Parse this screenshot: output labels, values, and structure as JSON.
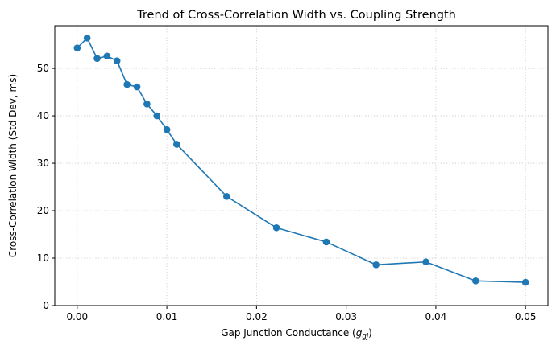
{
  "chart_data": {
    "type": "line",
    "title": "Trend of Cross-Correlation Width vs. Coupling Strength",
    "xlabel_prefix": "Gap Junction Conductance (",
    "xlabel_symbol": "g",
    "xlabel_subscript": "gj",
    "xlabel_suffix": ")",
    "ylabel": "Cross-Correlation Width (Std Dev, ms)",
    "xlim": [
      -0.0025,
      0.0525
    ],
    "ylim": [
      0,
      59
    ],
    "xticks": [
      0.0,
      0.01,
      0.02,
      0.03,
      0.04,
      0.05
    ],
    "xtick_labels": [
      "0.00",
      "0.01",
      "0.02",
      "0.03",
      "0.04",
      "0.05"
    ],
    "yticks": [
      0,
      10,
      20,
      30,
      40,
      50
    ],
    "ytick_labels": [
      "0",
      "10",
      "20",
      "30",
      "40",
      "50"
    ],
    "grid": true,
    "color": "#1f77b4",
    "series": [
      {
        "marker": "circle",
        "x": [
          0.0,
          0.00111,
          0.00222,
          0.00333,
          0.00444,
          0.00556,
          0.00667,
          0.00778,
          0.00889,
          0.01,
          0.0111,
          0.01667,
          0.02222,
          0.02778,
          0.03333,
          0.03889,
          0.04444,
          0.05
        ],
        "y": [
          54.3,
          56.4,
          52.1,
          52.6,
          51.6,
          46.6,
          46.1,
          42.5,
          40.0,
          37.1,
          34.0,
          23.0,
          16.4,
          13.4,
          8.6,
          9.2,
          5.2,
          4.9
        ]
      }
    ]
  }
}
